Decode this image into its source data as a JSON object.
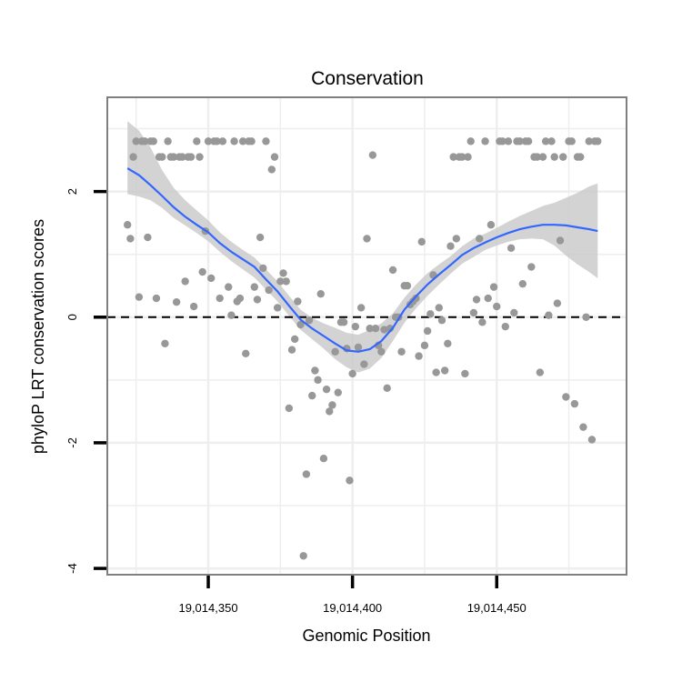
{
  "chart_data": {
    "type": "scatter",
    "title": "Conservation",
    "xlabel": "Genomic Position",
    "ylabel": "phyloP LRT conservation scores",
    "xlim": [
      19014315,
      19014495
    ],
    "ylim": [
      -4.1,
      3.5
    ],
    "x_ticks": [
      {
        "value": 19014350,
        "label": "19,014,350"
      },
      {
        "value": 19014400,
        "label": "19,014,400"
      },
      {
        "value": 19014450,
        "label": "19,014,450"
      }
    ],
    "y_ticks": [
      {
        "value": -4,
        "label": "-4"
      },
      {
        "value": -2,
        "label": "-2"
      },
      {
        "value": 0,
        "label": "0"
      },
      {
        "value": 2,
        "label": "2"
      }
    ],
    "reference_line": {
      "y": 0,
      "style": "dashed"
    },
    "colors": {
      "points": "#989898",
      "smooth_line": "#3366ff",
      "confidence_band": "#c8c8c8",
      "grid": "#eeeeee",
      "panel_border": "#7f7f7f",
      "axis": "#000000"
    },
    "series": [
      {
        "name": "phyloP scores",
        "type": "scatter",
        "points": [
          [
            19014322,
            1.47
          ],
          [
            19014323,
            1.25
          ],
          [
            19014324,
            2.55
          ],
          [
            19014325,
            2.8
          ],
          [
            19014326,
            0.32
          ],
          [
            19014327,
            2.8
          ],
          [
            19014328,
            2.8
          ],
          [
            19014329,
            1.27
          ],
          [
            19014330,
            2.8
          ],
          [
            19014331,
            2.8
          ],
          [
            19014332,
            0.3
          ],
          [
            19014333,
            2.55
          ],
          [
            19014334,
            2.55
          ],
          [
            19014335,
            -0.42
          ],
          [
            19014336,
            2.8
          ],
          [
            19014337,
            2.55
          ],
          [
            19014338,
            2.55
          ],
          [
            19014339,
            0.24
          ],
          [
            19014340,
            2.55
          ],
          [
            19014341,
            2.55
          ],
          [
            19014342,
            0.57
          ],
          [
            19014343,
            2.55
          ],
          [
            19014344,
            2.55
          ],
          [
            19014345,
            0.17
          ],
          [
            19014346,
            2.8
          ],
          [
            19014347,
            2.55
          ],
          [
            19014348,
            0.72
          ],
          [
            19014349,
            1.37
          ],
          [
            19014350,
            2.8
          ],
          [
            19014351,
            0.62
          ],
          [
            19014352,
            2.8
          ],
          [
            19014353,
            2.8
          ],
          [
            19014354,
            0.3
          ],
          [
            19014355,
            2.8
          ],
          [
            19014357,
            0.48
          ],
          [
            19014358,
            0.03
          ],
          [
            19014359,
            2.8
          ],
          [
            19014360,
            0.25
          ],
          [
            19014361,
            0.3
          ],
          [
            19014362,
            2.8
          ],
          [
            19014363,
            -0.58
          ],
          [
            19014364,
            2.8
          ],
          [
            19014365,
            2.8
          ],
          [
            19014366,
            0.48
          ],
          [
            19014367,
            0.28
          ],
          [
            19014368,
            1.27
          ],
          [
            19014369,
            0.78
          ],
          [
            19014370,
            2.8
          ],
          [
            19014371,
            0.43
          ],
          [
            19014372,
            2.35
          ],
          [
            19014373,
            2.55
          ],
          [
            19014374,
            0.15
          ],
          [
            19014375,
            0.57
          ],
          [
            19014376,
            0.7
          ],
          [
            19014377,
            0.57
          ],
          [
            19014378,
            -1.45
          ],
          [
            19014379,
            -0.52
          ],
          [
            19014380,
            -0.35
          ],
          [
            19014381,
            0.25
          ],
          [
            19014382,
            -0.12
          ],
          [
            19014383,
            -3.8
          ],
          [
            19014384,
            -2.5
          ],
          [
            19014385,
            -0.05
          ],
          [
            19014386,
            -1.25
          ],
          [
            19014387,
            -0.85
          ],
          [
            19014388,
            -1.0
          ],
          [
            19014389,
            0.37
          ],
          [
            19014390,
            -2.25
          ],
          [
            19014391,
            -1.15
          ],
          [
            19014392,
            -1.5
          ],
          [
            19014393,
            -1.4
          ],
          [
            19014394,
            -0.55
          ],
          [
            19014395,
            -1.2
          ],
          [
            19014396,
            -0.08
          ],
          [
            19014397,
            -0.08
          ],
          [
            19014398,
            -0.5
          ],
          [
            19014399,
            -2.6
          ],
          [
            19014400,
            -0.9
          ],
          [
            19014401,
            -0.15
          ],
          [
            19014402,
            -0.48
          ],
          [
            19014403,
            0.15
          ],
          [
            19014404,
            -0.75
          ],
          [
            19014405,
            1.25
          ],
          [
            19014406,
            -0.18
          ],
          [
            19014407,
            2.58
          ],
          [
            19014408,
            -0.18
          ],
          [
            19014409,
            -0.45
          ],
          [
            19014410,
            -0.55
          ],
          [
            19014411,
            -0.2
          ],
          [
            19014412,
            -1.13
          ],
          [
            19014413,
            -0.18
          ],
          [
            19014414,
            0.75
          ],
          [
            19014415,
            0.0
          ],
          [
            19014416,
            0.0
          ],
          [
            19014417,
            -0.55
          ],
          [
            19014418,
            0.5
          ],
          [
            19014419,
            0.5
          ],
          [
            19014420,
            0.2
          ],
          [
            19014421,
            0.25
          ],
          [
            19014422,
            0.3
          ],
          [
            19014423,
            -0.62
          ],
          [
            19014424,
            1.2
          ],
          [
            19014425,
            -0.45
          ],
          [
            19014426,
            -0.22
          ],
          [
            19014427,
            0.05
          ],
          [
            19014428,
            0.67
          ],
          [
            19014429,
            -0.88
          ],
          [
            19014430,
            0.15
          ],
          [
            19014431,
            -0.05
          ],
          [
            19014432,
            -0.85
          ],
          [
            19014433,
            -0.42
          ],
          [
            19014434,
            1.13
          ],
          [
            19014435,
            2.55
          ],
          [
            19014436,
            1.25
          ],
          [
            19014437,
            2.55
          ],
          [
            19014438,
            2.55
          ],
          [
            19014439,
            -0.9
          ],
          [
            19014440,
            2.55
          ],
          [
            19014441,
            2.8
          ],
          [
            19014442,
            0.07
          ],
          [
            19014443,
            0.28
          ],
          [
            19014444,
            1.25
          ],
          [
            19014445,
            -0.08
          ],
          [
            19014446,
            2.8
          ],
          [
            19014447,
            0.3
          ],
          [
            19014448,
            1.47
          ],
          [
            19014449,
            0.48
          ],
          [
            19014450,
            0.17
          ],
          [
            19014451,
            2.8
          ],
          [
            19014452,
            2.8
          ],
          [
            19014453,
            -0.15
          ],
          [
            19014454,
            2.8
          ],
          [
            19014455,
            1.1
          ],
          [
            19014456,
            0.07
          ],
          [
            19014457,
            2.8
          ],
          [
            19014458,
            2.8
          ],
          [
            19014459,
            0.53
          ],
          [
            19014460,
            2.8
          ],
          [
            19014461,
            2.8
          ],
          [
            19014462,
            0.8
          ],
          [
            19014463,
            2.55
          ],
          [
            19014464,
            2.55
          ],
          [
            19014465,
            -0.88
          ],
          [
            19014466,
            2.55
          ],
          [
            19014467,
            2.8
          ],
          [
            19014468,
            0.03
          ],
          [
            19014469,
            2.8
          ],
          [
            19014470,
            2.55
          ],
          [
            19014471,
            0.22
          ],
          [
            19014472,
            1.22
          ],
          [
            19014473,
            2.55
          ],
          [
            19014474,
            -1.27
          ],
          [
            19014475,
            2.8
          ],
          [
            19014476,
            2.8
          ],
          [
            19014477,
            -1.38
          ],
          [
            19014478,
            2.55
          ],
          [
            19014479,
            2.55
          ],
          [
            19014480,
            -1.75
          ],
          [
            19014481,
            0.0
          ],
          [
            19014482,
            2.8
          ],
          [
            19014483,
            -1.95
          ],
          [
            19014484,
            2.8
          ],
          [
            19014485,
            2.8
          ]
        ]
      },
      {
        "name": "loess smooth",
        "type": "line",
        "x": [
          19014322,
          19014326,
          19014330,
          19014334,
          19014338,
          19014342,
          19014346,
          19014350,
          19014354,
          19014358,
          19014362,
          19014366,
          19014370,
          19014374,
          19014378,
          19014382,
          19014386,
          19014390,
          19014394,
          19014398,
          19014402,
          19014406,
          19014410,
          19014414,
          19014418,
          19014422,
          19014426,
          19014430,
          19014434,
          19014438,
          19014442,
          19014446,
          19014450,
          19014454,
          19014458,
          19014462,
          19014466,
          19014470,
          19014474,
          19014478,
          19014482,
          19014485
        ],
        "y": [
          2.37,
          2.26,
          2.1,
          1.93,
          1.75,
          1.6,
          1.47,
          1.35,
          1.18,
          1.04,
          0.92,
          0.8,
          0.6,
          0.41,
          0.18,
          -0.04,
          -0.18,
          -0.3,
          -0.42,
          -0.53,
          -0.55,
          -0.51,
          -0.38,
          -0.17,
          0.12,
          0.33,
          0.52,
          0.68,
          0.83,
          0.99,
          1.1,
          1.19,
          1.27,
          1.34,
          1.4,
          1.44,
          1.47,
          1.47,
          1.46,
          1.43,
          1.4,
          1.37
        ],
        "lower": [
          1.96,
          1.92,
          1.86,
          1.74,
          1.58,
          1.46,
          1.34,
          1.21,
          1.04,
          0.89,
          0.76,
          0.63,
          0.44,
          0.25,
          0.02,
          -0.2,
          -0.35,
          -0.5,
          -0.67,
          -0.8,
          -0.88,
          -0.82,
          -0.65,
          -0.38,
          -0.09,
          0.14,
          0.34,
          0.52,
          0.69,
          0.85,
          0.96,
          1.07,
          1.14,
          1.2,
          1.24,
          1.25,
          1.24,
          1.14,
          0.98,
          0.84,
          0.72,
          0.62
        ],
        "upper": [
          3.12,
          2.97,
          2.7,
          2.34,
          2.06,
          1.86,
          1.7,
          1.54,
          1.35,
          1.2,
          1.07,
          0.95,
          0.76,
          0.57,
          0.34,
          0.12,
          -0.01,
          -0.1,
          -0.17,
          -0.25,
          -0.28,
          -0.2,
          -0.1,
          0.06,
          0.31,
          0.52,
          0.7,
          0.84,
          0.97,
          1.13,
          1.25,
          1.33,
          1.42,
          1.52,
          1.61,
          1.69,
          1.77,
          1.82,
          1.9,
          1.98,
          2.08,
          2.13
        ]
      }
    ]
  }
}
